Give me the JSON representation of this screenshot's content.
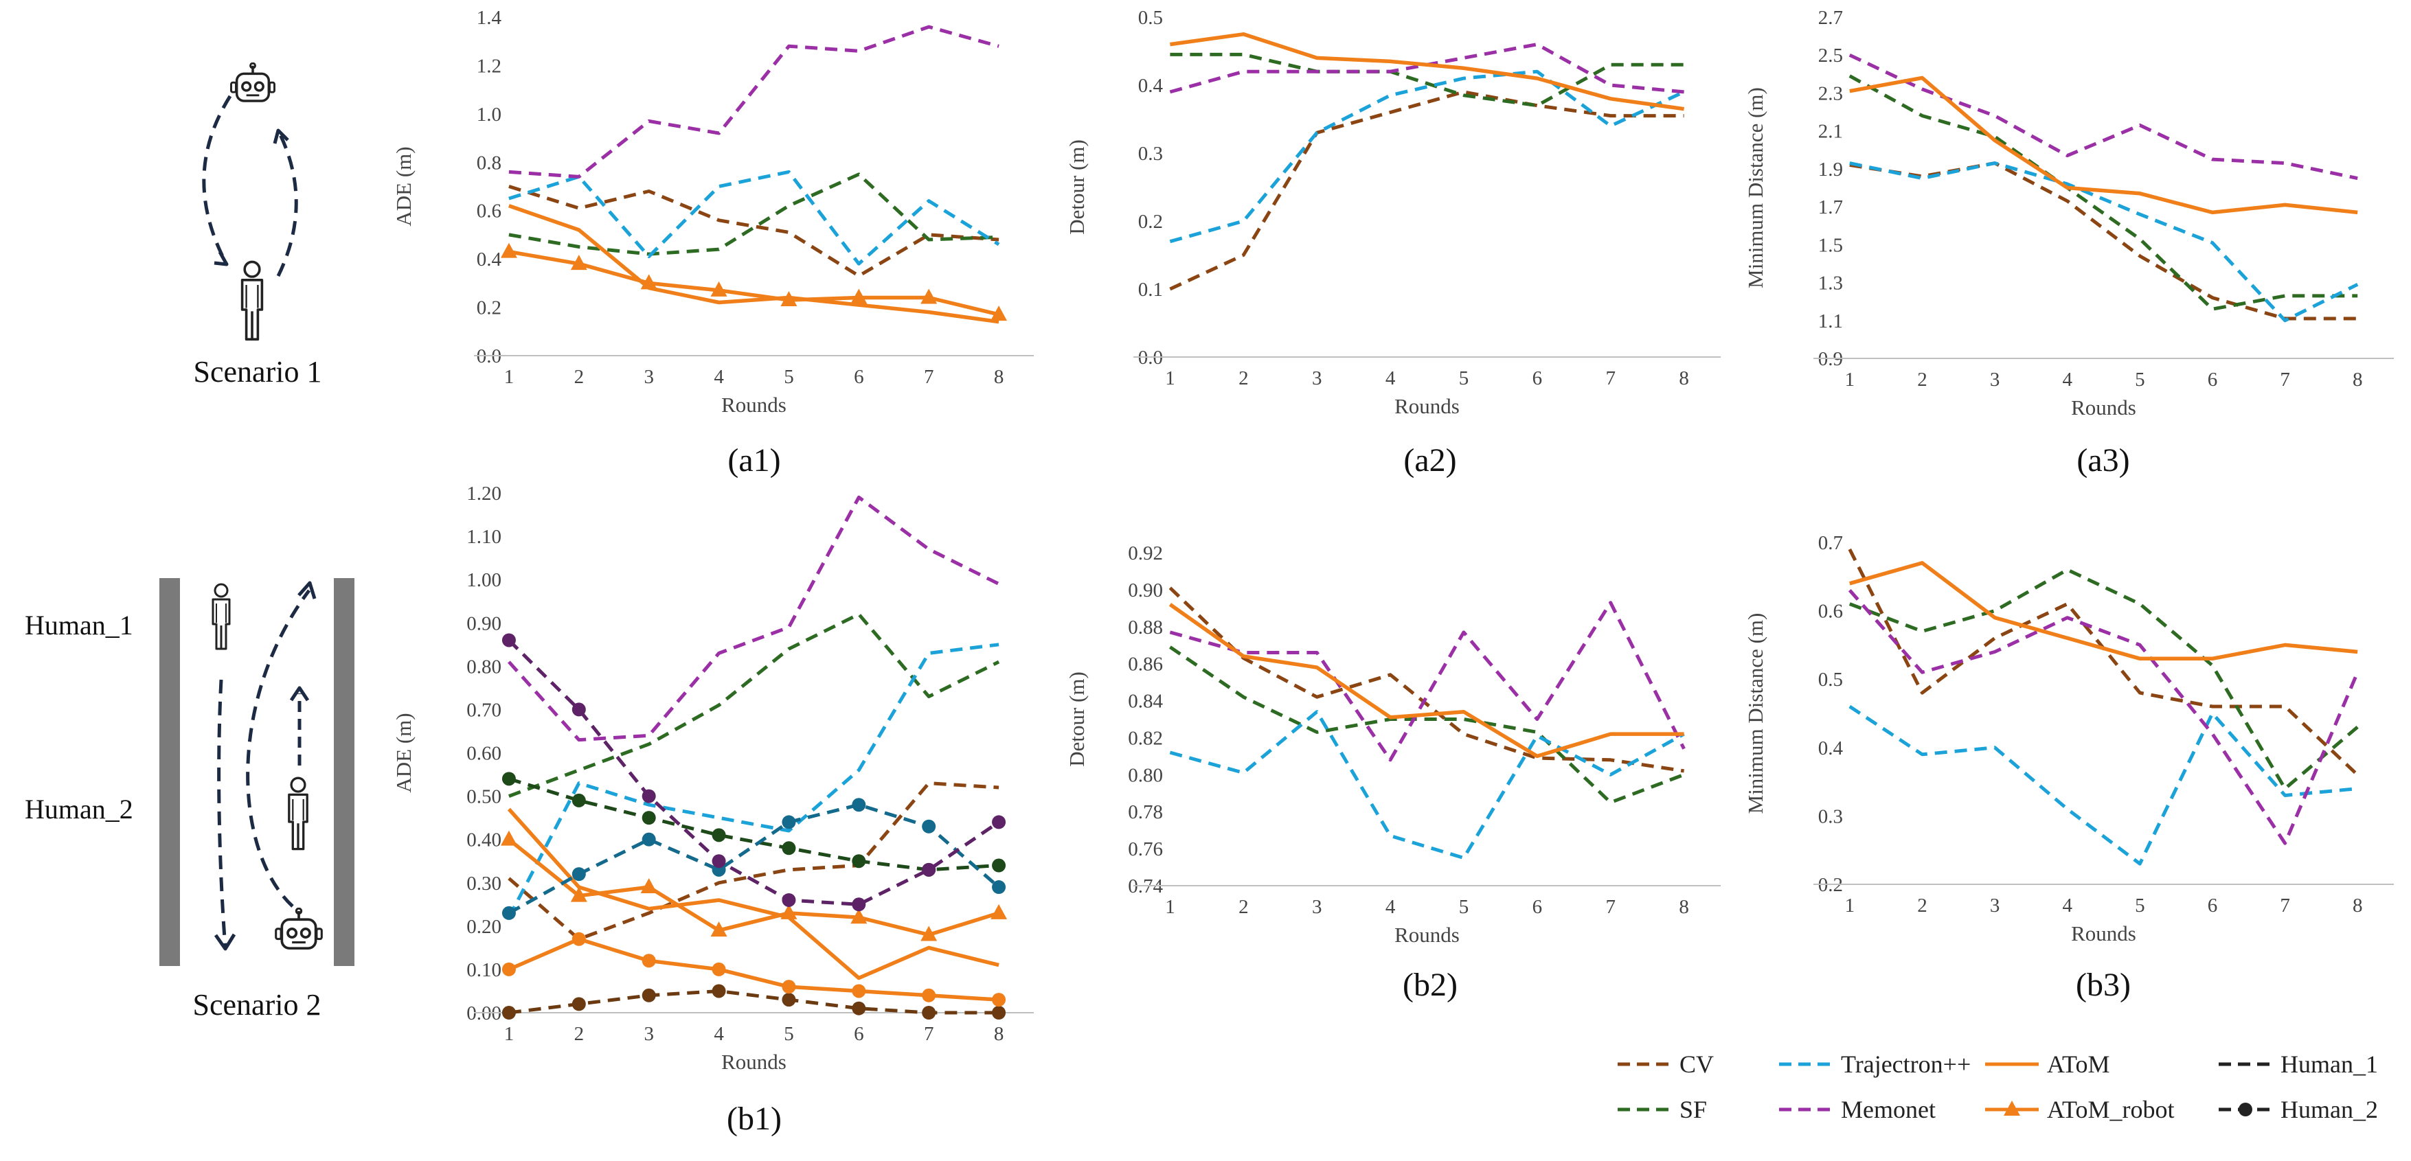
{
  "colors": {
    "CV": "#8B4513",
    "SF": "#2E6B22",
    "Trajectron++": "#1BA3D9",
    "Memonet": "#9B2FA6",
    "AToM": "#F07F19",
    "AToM_robot": "#F07F19",
    "Human_1": "#222222",
    "Human_2": "#222222",
    "human2_cv": "#6B3A10",
    "human2_sf": "#1E4A1A",
    "human2_traj": "#136A8C",
    "human2_memonet": "#5E2266"
  },
  "scenarios": {
    "s1_label": "Scenario 1",
    "s2_label": "Scenario 2",
    "human1_label": "Human_1",
    "human2_label": "Human_2"
  },
  "legend": [
    {
      "label": "CV",
      "style": "dash",
      "color": "CV"
    },
    {
      "label": "Trajectron++",
      "style": "dash",
      "color": "Trajectron++"
    },
    {
      "label": "AToM",
      "style": "solid",
      "color": "AToM"
    },
    {
      "label": "Human_1",
      "style": "dash",
      "color": "Human_1"
    },
    {
      "label": "SF",
      "style": "dash",
      "color": "SF"
    },
    {
      "label": "Memonet",
      "style": "dash",
      "color": "Memonet"
    },
    {
      "label": "AToM_robot",
      "style": "solid-triangle",
      "color": "AToM_robot"
    },
    {
      "label": "Human_2",
      "style": "dash-circle",
      "color": "Human_2"
    }
  ],
  "chart_data": [
    {
      "id": "a1",
      "type": "line",
      "label": "(a1)",
      "xlabel": "Rounds",
      "ylabel": "ADE (m)",
      "x": [
        1,
        2,
        3,
        4,
        5,
        6,
        7,
        8
      ],
      "ylim": [
        0,
        1.4
      ],
      "yticks": [
        "0.0",
        "0.2",
        "0.4",
        "0.6",
        "0.8",
        "1.0",
        "1.2",
        "1.4"
      ],
      "series": [
        {
          "name": "CV",
          "style": "dash",
          "color": "CV",
          "values": [
            0.7,
            0.61,
            0.68,
            0.56,
            0.51,
            0.33,
            0.5,
            0.48
          ]
        },
        {
          "name": "SF",
          "style": "dash",
          "color": "SF",
          "values": [
            0.5,
            0.45,
            0.42,
            0.44,
            0.62,
            0.75,
            0.48,
            0.49
          ]
        },
        {
          "name": "Trajectron++",
          "style": "dash",
          "color": "Trajectron++",
          "values": [
            0.65,
            0.74,
            0.41,
            0.7,
            0.76,
            0.38,
            0.64,
            0.46
          ]
        },
        {
          "name": "Memonet",
          "style": "dash",
          "color": "Memonet",
          "values": [
            0.76,
            0.74,
            0.97,
            0.92,
            1.28,
            1.26,
            1.36,
            1.28
          ]
        },
        {
          "name": "AToM",
          "style": "solid",
          "color": "AToM",
          "values": [
            0.62,
            0.52,
            0.28,
            0.22,
            0.24,
            0.21,
            0.18,
            0.14
          ]
        },
        {
          "name": "AToM_robot",
          "style": "solid-triangle",
          "color": "AToM_robot",
          "values": [
            0.43,
            0.38,
            0.3,
            0.27,
            0.23,
            0.24,
            0.24,
            0.17
          ]
        }
      ]
    },
    {
      "id": "a2",
      "type": "line",
      "label": "(a2)",
      "xlabel": "Rounds",
      "ylabel": "Detour (m)",
      "x": [
        1,
        2,
        3,
        4,
        5,
        6,
        7,
        8
      ],
      "ylim": [
        0,
        0.5
      ],
      "yticks": [
        "0.0",
        "0.1",
        "0.2",
        "0.3",
        "0.4",
        "0.5"
      ],
      "series": [
        {
          "name": "CV",
          "style": "dash",
          "color": "CV",
          "values": [
            0.1,
            0.15,
            0.33,
            0.36,
            0.39,
            0.37,
            0.355,
            0.355
          ]
        },
        {
          "name": "SF",
          "style": "dash",
          "color": "SF",
          "values": [
            0.445,
            0.445,
            0.42,
            0.42,
            0.385,
            0.37,
            0.43,
            0.43
          ]
        },
        {
          "name": "Trajectron++",
          "style": "dash",
          "color": "Trajectron++",
          "values": [
            0.17,
            0.2,
            0.33,
            0.385,
            0.41,
            0.42,
            0.34,
            0.39
          ]
        },
        {
          "name": "Memonet",
          "style": "dash",
          "color": "Memonet",
          "values": [
            0.39,
            0.42,
            0.42,
            0.42,
            0.44,
            0.46,
            0.4,
            0.39
          ]
        },
        {
          "name": "AToM",
          "style": "solid",
          "color": "AToM",
          "values": [
            0.46,
            0.475,
            0.44,
            0.435,
            0.425,
            0.41,
            0.38,
            0.365
          ]
        }
      ]
    },
    {
      "id": "a3",
      "type": "line",
      "label": "(a3)",
      "xlabel": "Rounds",
      "ylabel": "Minimum Distance (m)",
      "x": [
        1,
        2,
        3,
        4,
        5,
        6,
        7,
        8
      ],
      "ylim": [
        0.9,
        2.7
      ],
      "yticks": [
        "0.9",
        "1.1",
        "1.3",
        "1.5",
        "1.7",
        "1.9",
        "2.1",
        "2.3",
        "2.5",
        "2.7"
      ],
      "series": [
        {
          "name": "CV",
          "style": "dash",
          "color": "CV",
          "values": [
            1.92,
            1.86,
            1.93,
            1.73,
            1.44,
            1.22,
            1.11,
            1.11
          ]
        },
        {
          "name": "SF",
          "style": "dash",
          "color": "SF",
          "values": [
            2.39,
            2.18,
            2.07,
            1.8,
            1.53,
            1.16,
            1.23,
            1.23
          ]
        },
        {
          "name": "Trajectron++",
          "style": "dash",
          "color": "Trajectron++",
          "values": [
            1.93,
            1.85,
            1.93,
            1.82,
            1.66,
            1.51,
            1.1,
            1.29
          ]
        },
        {
          "name": "Memonet",
          "style": "dash",
          "color": "Memonet",
          "values": [
            2.5,
            2.32,
            2.18,
            1.97,
            2.13,
            1.95,
            1.93,
            1.85
          ]
        },
        {
          "name": "AToM",
          "style": "solid",
          "color": "AToM",
          "values": [
            2.31,
            2.38,
            2.05,
            1.8,
            1.77,
            1.67,
            1.71,
            1.67
          ]
        }
      ]
    },
    {
      "id": "b1",
      "type": "line",
      "label": "(b1)",
      "xlabel": "Rounds",
      "ylabel": "ADE (m)",
      "x": [
        1,
        2,
        3,
        4,
        5,
        6,
        7,
        8
      ],
      "ylim": [
        0,
        1.2
      ],
      "yticks": [
        "0.00",
        "0.10",
        "0.20",
        "0.30",
        "0.40",
        "0.50",
        "0.60",
        "0.70",
        "0.80",
        "0.90",
        "1.00",
        "1.10",
        "1.20"
      ],
      "series": [
        {
          "name": "CV",
          "style": "dash",
          "color": "CV",
          "values": [
            0.31,
            0.17,
            0.23,
            0.3,
            0.33,
            0.34,
            0.53,
            0.52
          ]
        },
        {
          "name": "SF",
          "style": "dash",
          "color": "SF",
          "values": [
            0.5,
            0.56,
            0.62,
            0.71,
            0.84,
            0.92,
            0.73,
            0.81
          ]
        },
        {
          "name": "Trajectron++",
          "style": "dash",
          "color": "Trajectron++",
          "values": [
            0.22,
            0.53,
            0.48,
            0.45,
            0.42,
            0.56,
            0.83,
            0.85
          ]
        },
        {
          "name": "Memonet",
          "style": "dash",
          "color": "Memonet",
          "values": [
            0.81,
            0.63,
            0.64,
            0.83,
            0.89,
            1.19,
            1.07,
            0.99
          ]
        },
        {
          "name": "AToM",
          "style": "solid",
          "color": "AToM",
          "values": [
            0.47,
            0.29,
            0.24,
            0.26,
            0.22,
            0.08,
            0.15,
            0.11
          ]
        },
        {
          "name": "AToM_robot",
          "style": "solid-triangle",
          "color": "AToM_robot",
          "values": [
            0.4,
            0.27,
            0.29,
            0.19,
            0.23,
            0.22,
            0.18,
            0.23
          ]
        },
        {
          "name": "CV Human_2",
          "style": "dash-circle",
          "color": "human2_cv",
          "values": [
            0.0,
            0.02,
            0.04,
            0.05,
            0.03,
            0.01,
            0.0,
            0.0
          ]
        },
        {
          "name": "SF Human_2",
          "style": "dash-circle",
          "color": "human2_sf",
          "values": [
            0.54,
            0.49,
            0.45,
            0.41,
            0.38,
            0.35,
            0.33,
            0.34
          ]
        },
        {
          "name": "Trajectron++ Human_2",
          "style": "dash-circle",
          "color": "human2_traj",
          "values": [
            0.23,
            0.32,
            0.4,
            0.33,
            0.44,
            0.48,
            0.43,
            0.29
          ]
        },
        {
          "name": "Memonet Human_2",
          "style": "dash-circle",
          "color": "human2_memonet",
          "values": [
            0.86,
            0.7,
            0.5,
            0.35,
            0.26,
            0.25,
            0.33,
            0.44
          ]
        },
        {
          "name": "AToM Human_2",
          "style": "solid-circle",
          "color": "AToM",
          "values": [
            0.1,
            0.17,
            0.12,
            0.1,
            0.06,
            0.05,
            0.04,
            0.03
          ]
        }
      ]
    },
    {
      "id": "b2",
      "type": "line",
      "label": "(b2)",
      "xlabel": "Rounds",
      "ylabel": "Detour (m)",
      "x": [
        1,
        2,
        3,
        4,
        5,
        6,
        7,
        8
      ],
      "ylim": [
        0.74,
        0.92
      ],
      "yticks": [
        "0.74",
        "0.76",
        "0.78",
        "0.80",
        "0.82",
        "0.84",
        "0.86",
        "0.88",
        "0.90",
        "0.92"
      ],
      "series": [
        {
          "name": "CV",
          "style": "dash",
          "color": "CV",
          "values": [
            0.901,
            0.863,
            0.842,
            0.854,
            0.822,
            0.809,
            0.808,
            0.802
          ]
        },
        {
          "name": "SF",
          "style": "dash",
          "color": "SF",
          "values": [
            0.869,
            0.842,
            0.823,
            0.83,
            0.83,
            0.823,
            0.785,
            0.8
          ]
        },
        {
          "name": "Trajectron++",
          "style": "dash",
          "color": "Trajectron++",
          "values": [
            0.812,
            0.801,
            0.834,
            0.767,
            0.755,
            0.821,
            0.8,
            0.822
          ]
        },
        {
          "name": "Memonet",
          "style": "dash",
          "color": "Memonet",
          "values": [
            0.877,
            0.866,
            0.866,
            0.808,
            0.877,
            0.83,
            0.893,
            0.814
          ]
        },
        {
          "name": "AToM",
          "style": "solid",
          "color": "AToM",
          "values": [
            0.892,
            0.864,
            0.858,
            0.831,
            0.834,
            0.81,
            0.822,
            0.822
          ]
        }
      ]
    },
    {
      "id": "b3",
      "type": "line",
      "label": "(b3)",
      "xlabel": "Rounds",
      "ylabel": "Minimum Distance (m)",
      "x": [
        1,
        2,
        3,
        4,
        5,
        6,
        7,
        8
      ],
      "ylim": [
        0.2,
        0.7
      ],
      "yticks": [
        "0.2",
        "0.3",
        "0.4",
        "0.5",
        "0.6",
        "0.7"
      ],
      "series": [
        {
          "name": "CV",
          "style": "dash",
          "color": "CV",
          "values": [
            0.69,
            0.48,
            0.56,
            0.61,
            0.48,
            0.46,
            0.46,
            0.36
          ]
        },
        {
          "name": "SF",
          "style": "dash",
          "color": "SF",
          "values": [
            0.61,
            0.57,
            0.6,
            0.66,
            0.61,
            0.52,
            0.34,
            0.43
          ]
        },
        {
          "name": "Trajectron++",
          "style": "dash",
          "color": "Trajectron++",
          "values": [
            0.46,
            0.39,
            0.4,
            0.31,
            0.23,
            0.45,
            0.33,
            0.34
          ]
        },
        {
          "name": "Memonet",
          "style": "dash",
          "color": "Memonet",
          "values": [
            0.63,
            0.51,
            0.54,
            0.59,
            0.55,
            0.42,
            0.26,
            0.51
          ]
        },
        {
          "name": "AToM",
          "style": "solid",
          "color": "AToM",
          "values": [
            0.64,
            0.67,
            0.59,
            0.56,
            0.53,
            0.53,
            0.55,
            0.54
          ]
        }
      ]
    }
  ]
}
